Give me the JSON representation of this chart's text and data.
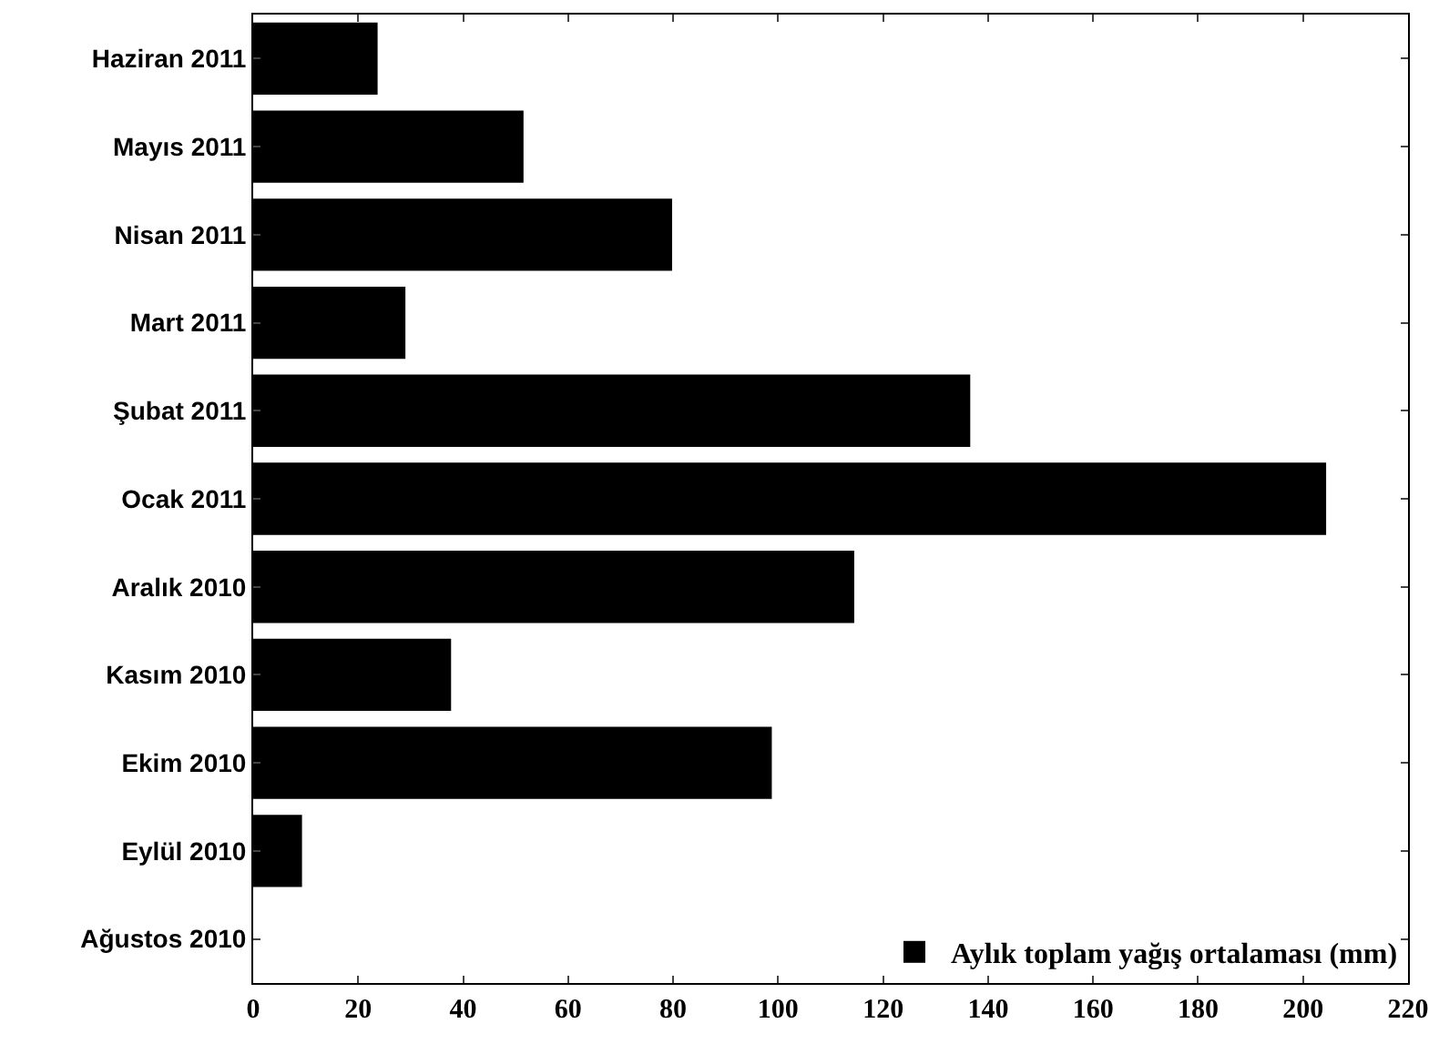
{
  "chart_data": {
    "type": "bar",
    "orientation": "horizontal",
    "categories": [
      "Haziran 2011",
      "Mayıs 2011",
      "Nisan 2011",
      "Mart 2011",
      "Şubat 2011",
      "Ocak 2011",
      "Aralık 2010",
      "Kasım 2010",
      "Ekim 2010",
      "Eylül 2010",
      "Ağustos 2010"
    ],
    "series": [
      {
        "name": "Aylık toplam yağış ortalaması (mm)",
        "color": "#000000",
        "values": [
          23.7,
          51.5,
          79.8,
          29,
          136.6,
          204.4,
          114.5,
          37.7,
          98.8,
          9.3,
          0
        ]
      }
    ],
    "xlim": [
      0,
      220
    ],
    "xticks": [
      0,
      20,
      40,
      60,
      80,
      100,
      120,
      140,
      160,
      180,
      200,
      220
    ],
    "grid": false,
    "legend": "bottom right"
  }
}
